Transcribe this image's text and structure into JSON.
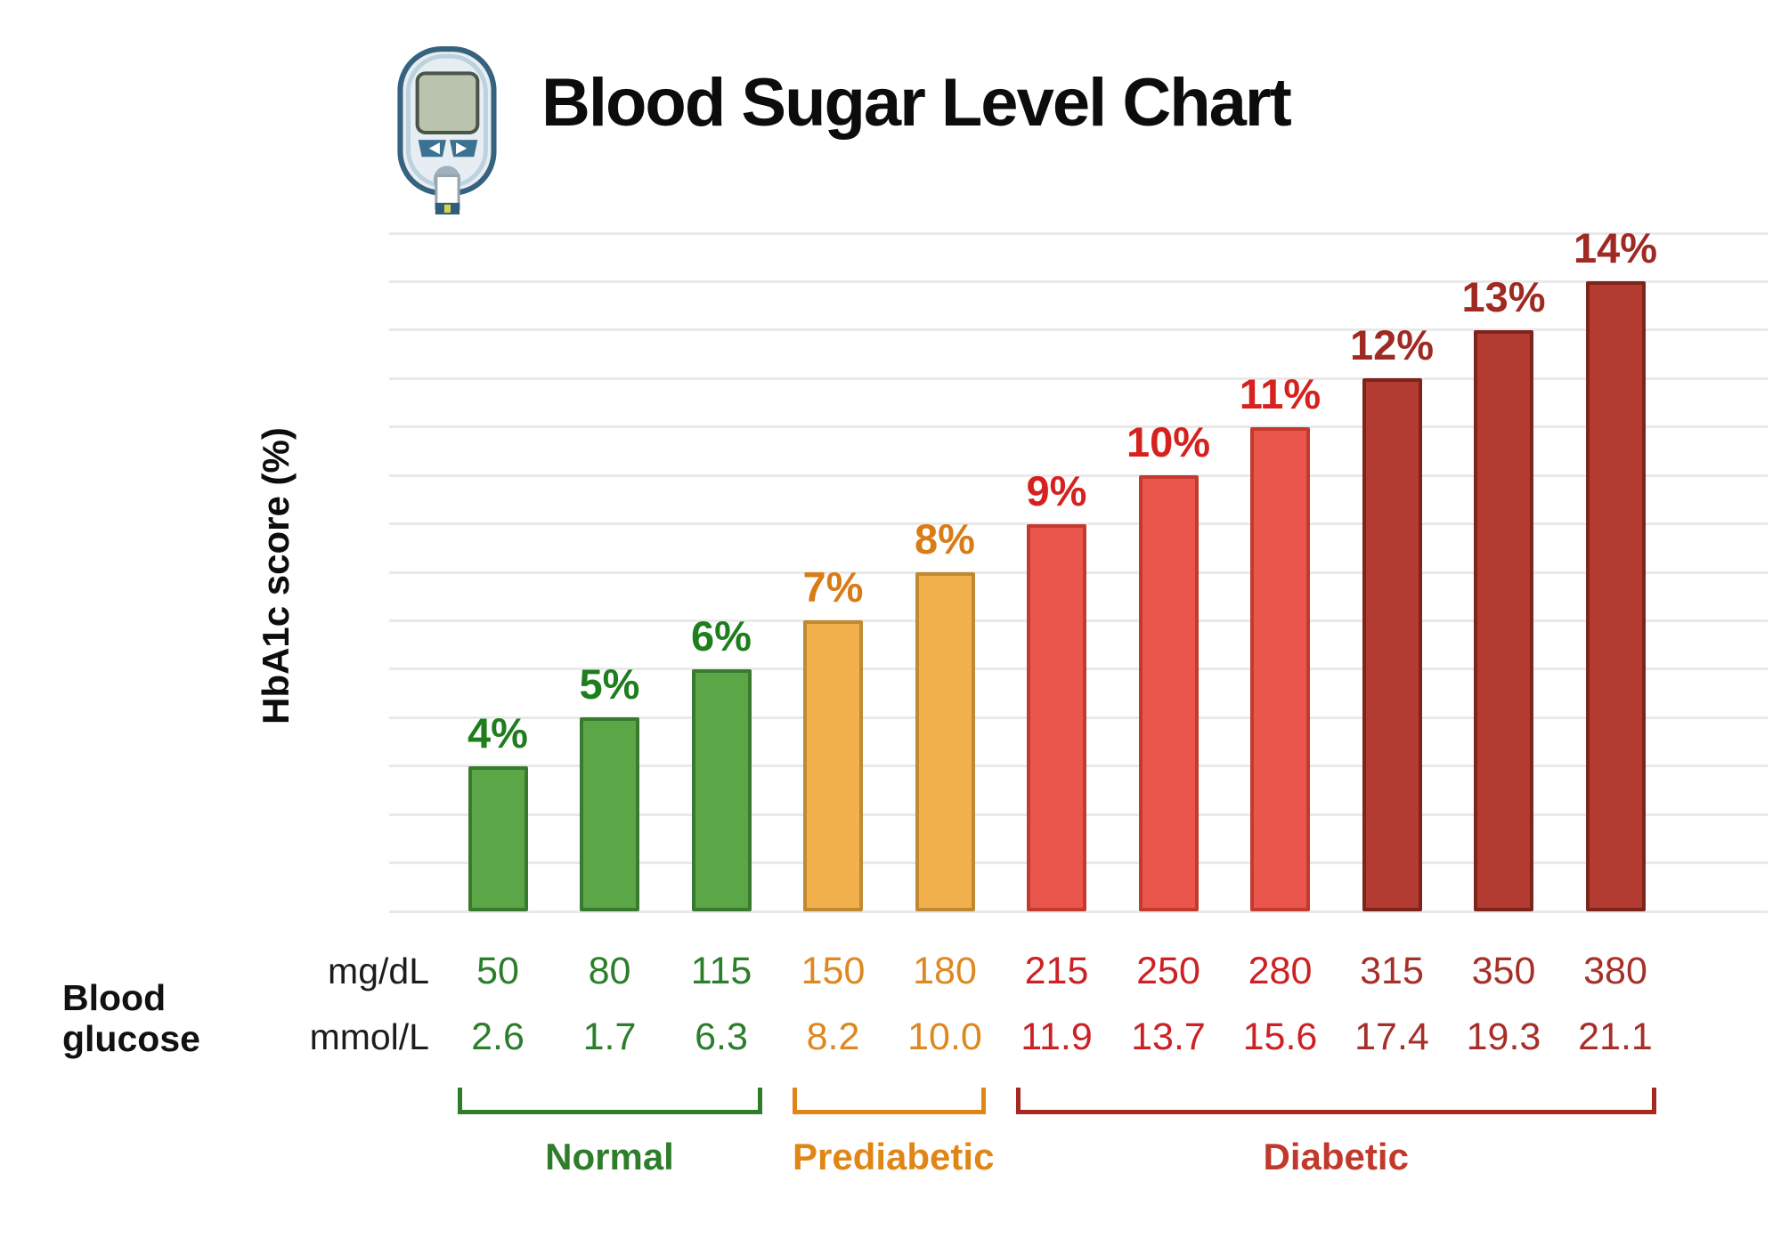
{
  "header": {
    "title": "Blood Sugar Level Chart",
    "icon": "glucose-meter-icon"
  },
  "axis": {
    "ylabel": "HbA1c score (%)",
    "row_label": "Blood glucose",
    "unit_mgdl": "mg/dL",
    "unit_mmol": "mmol/L"
  },
  "colors": {
    "green": {
      "fill": "#5ba747",
      "stroke": "#3a7a2e",
      "label": "#1e7e1e",
      "value": "#2b7e2b",
      "bracket": "#2e7d2a",
      "group_text": "#2e7d2a"
    },
    "orange": {
      "fill": "#f2b14d",
      "stroke": "#bf8a31",
      "label": "#d97c16",
      "value": "#dd8820",
      "bracket": "#e08616",
      "group_text": "#e08616"
    },
    "red": {
      "fill": "#ea564c",
      "stroke": "#c23a30",
      "label": "#d6221f",
      "value": "#cc2125",
      "bracket": "#c0392b",
      "group_text": "#c0392b"
    },
    "darkred": {
      "fill": "#b23b32",
      "stroke": "#7e241c",
      "label": "#9e2a23",
      "value": "#a63029",
      "bracket": "#a5291f",
      "group_text": "#c0392b"
    }
  },
  "chart_data": {
    "type": "bar",
    "title": "Blood Sugar Level Chart",
    "ylabel": "HbA1c score (%)",
    "ylim": [
      1,
      15
    ],
    "grid": "horizontal",
    "legend": "none",
    "bars": [
      {
        "value": 4,
        "label": "4%",
        "mgdl": "50",
        "mmol": "2.6",
        "color": "green"
      },
      {
        "value": 5,
        "label": "5%",
        "mgdl": "80",
        "mmol": "1.7",
        "color": "green"
      },
      {
        "value": 6,
        "label": "6%",
        "mgdl": "115",
        "mmol": "6.3",
        "color": "green"
      },
      {
        "value": 7,
        "label": "7%",
        "mgdl": "150",
        "mmol": "8.2",
        "color": "orange"
      },
      {
        "value": 8,
        "label": "8%",
        "mgdl": "180",
        "mmol": "10.0",
        "color": "orange"
      },
      {
        "value": 9,
        "label": "9%",
        "mgdl": "215",
        "mmol": "11.9",
        "color": "red"
      },
      {
        "value": 10,
        "label": "10%",
        "mgdl": "250",
        "mmol": "13.7",
        "color": "red"
      },
      {
        "value": 11,
        "label": "11%",
        "mgdl": "280",
        "mmol": "15.6",
        "color": "red"
      },
      {
        "value": 12,
        "label": "12%",
        "mgdl": "315",
        "mmol": "17.4",
        "color": "darkred"
      },
      {
        "value": 13,
        "label": "13%",
        "mgdl": "350",
        "mmol": "19.3",
        "color": "darkred"
      },
      {
        "value": 14,
        "label": "14%",
        "mgdl": "380",
        "mmol": "21.1",
        "color": "darkred"
      }
    ],
    "groups": [
      {
        "label": "Normal",
        "color": "green",
        "from": 0,
        "to": 2
      },
      {
        "label": "Prediabetic",
        "color": "orange",
        "from": 3,
        "to": 4
      },
      {
        "label": "Diabetic",
        "color": "darkred",
        "from": 5,
        "to": 10
      }
    ]
  }
}
